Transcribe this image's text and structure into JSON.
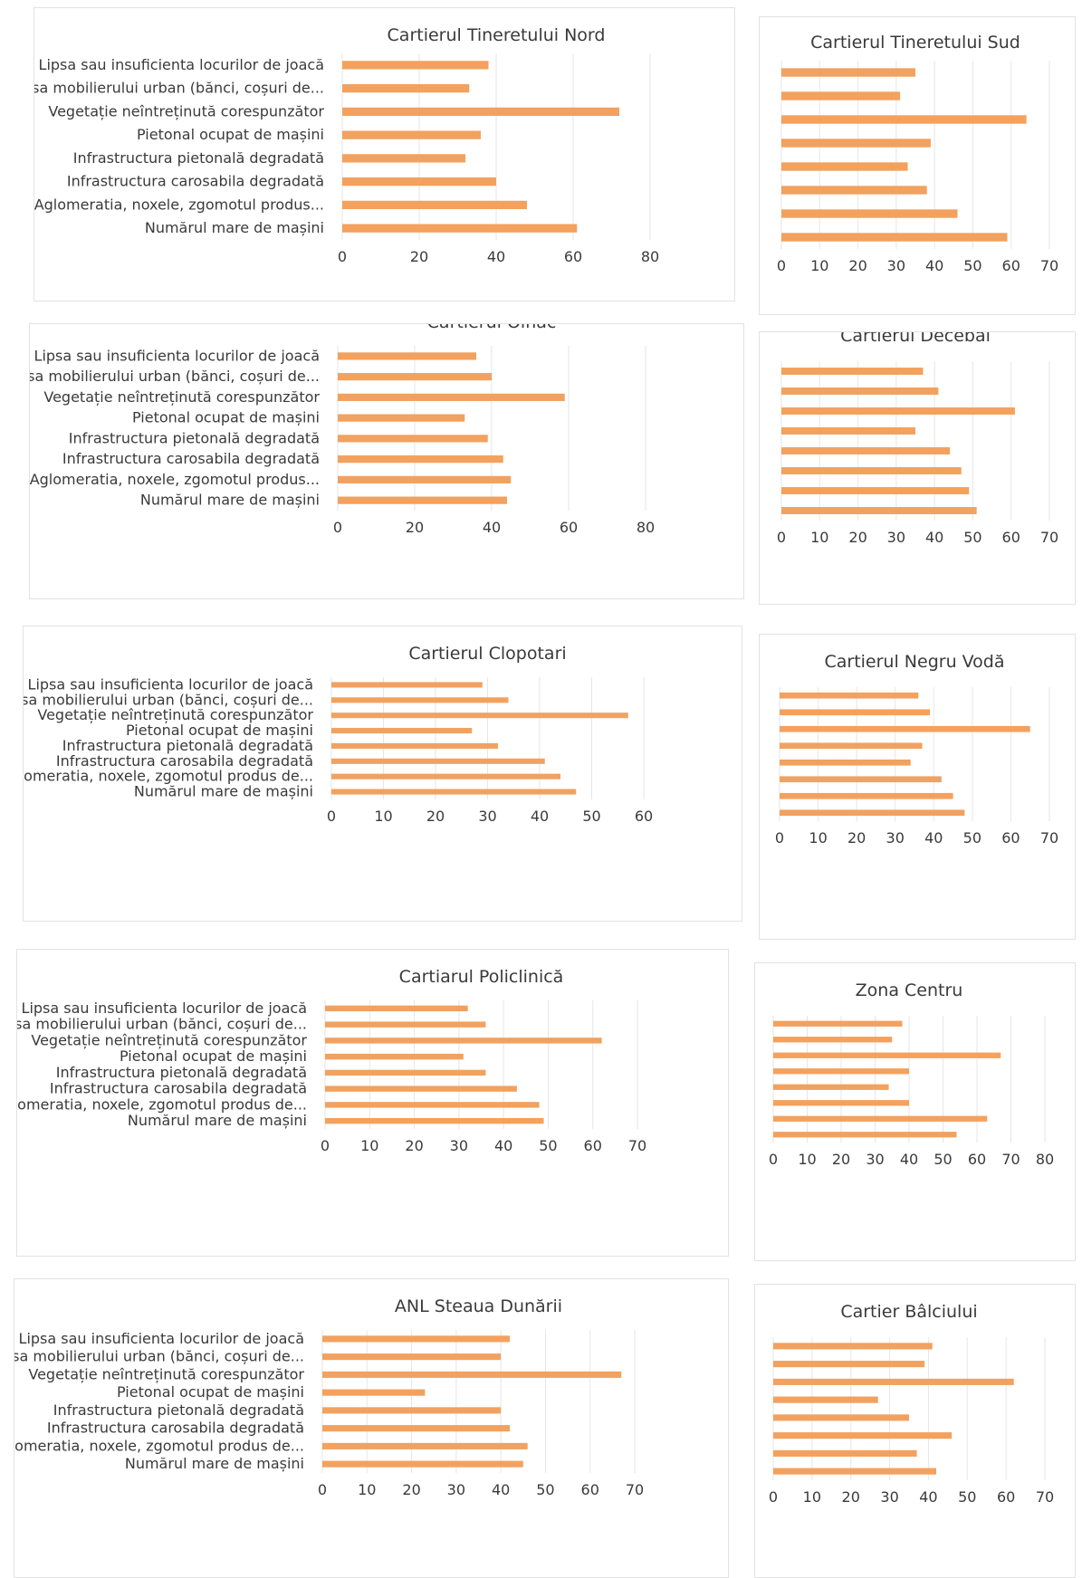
{
  "categories": [
    "Lipsa sau insuficienta locurilor de joacă",
    "Lipsa mobilierului urban (bănci, coșuri de...",
    "Vegetație neîntreținută corespunzător",
    "Pietonal ocupat de mașini",
    "Infrastructura pietonală degradată",
    "Infrastructura carosabila degradată",
    "Aglomeratia, noxele, zgomotul produs de...",
    "Numărul mare de mașini"
  ],
  "categories_variant": {
    "aglomeratia_short": "Aglomeratia, noxele, zgomotul produs..."
  },
  "style": {
    "bar_color": "#f3a15e",
    "grid_color": "#e6e6e6",
    "text_color": "#3a3a3a"
  },
  "chart_data": [
    {
      "type": "bar",
      "orientation": "horizontal",
      "title": "Cartierul Tineretului Nord",
      "show_categories": true,
      "short_aglomeratia": true,
      "values": [
        38,
        33,
        72,
        36,
        32,
        40,
        48,
        61
      ],
      "xlim": [
        0,
        80
      ],
      "xticks": [
        0,
        20,
        40,
        60,
        80
      ]
    },
    {
      "type": "bar",
      "orientation": "horizontal",
      "title": "Cartierul Tineretului Sud",
      "show_categories": false,
      "values": [
        35,
        31,
        64,
        39,
        33,
        38,
        46,
        59
      ],
      "xlim": [
        0,
        70
      ],
      "xticks": [
        0,
        10,
        20,
        30,
        40,
        50,
        60,
        70
      ]
    },
    {
      "type": "bar",
      "orientation": "horizontal",
      "title": "Cartierul Oinac",
      "show_categories": true,
      "short_aglomeratia": true,
      "values": [
        36,
        40,
        59,
        33,
        39,
        43,
        45,
        44
      ],
      "xlim": [
        0,
        80
      ],
      "xticks": [
        0,
        20,
        40,
        60,
        80
      ]
    },
    {
      "type": "bar",
      "orientation": "horizontal",
      "title": "Cartierul Decebal",
      "show_categories": false,
      "values": [
        37,
        41,
        61,
        35,
        44,
        47,
        49,
        51
      ],
      "xlim": [
        0,
        70
      ],
      "xticks": [
        0,
        10,
        20,
        30,
        40,
        50,
        60,
        70
      ]
    },
    {
      "type": "bar",
      "orientation": "horizontal",
      "title": "Cartierul Clopotari",
      "show_categories": true,
      "short_aglomeratia": false,
      "values": [
        29,
        34,
        57,
        27,
        32,
        41,
        44,
        47
      ],
      "xlim": [
        0,
        60
      ],
      "xticks": [
        0,
        10,
        20,
        30,
        40,
        50,
        60
      ]
    },
    {
      "type": "bar",
      "orientation": "horizontal",
      "title": "Cartierul Negru Vodă",
      "show_categories": false,
      "values": [
        36,
        39,
        65,
        37,
        34,
        42,
        45,
        48
      ],
      "xlim": [
        0,
        70
      ],
      "xticks": [
        0,
        10,
        20,
        30,
        40,
        50,
        60,
        70
      ]
    },
    {
      "type": "bar",
      "orientation": "horizontal",
      "title": "Cartiarul Policlinică",
      "show_categories": true,
      "short_aglomeratia": false,
      "values": [
        32,
        36,
        62,
        31,
        36,
        43,
        48,
        49
      ],
      "xlim": [
        0,
        70
      ],
      "xticks": [
        0,
        10,
        20,
        30,
        40,
        50,
        60,
        70
      ]
    },
    {
      "type": "bar",
      "orientation": "horizontal",
      "title": "Zona Centru",
      "show_categories": false,
      "values": [
        38,
        35,
        67,
        40,
        34,
        40,
        63,
        54
      ],
      "xlim": [
        0,
        80
      ],
      "xticks": [
        0,
        10,
        20,
        30,
        40,
        50,
        60,
        70,
        80
      ]
    },
    {
      "type": "bar",
      "orientation": "horizontal",
      "title": "ANL Steaua Dunării",
      "show_categories": true,
      "short_aglomeratia": false,
      "values": [
        42,
        40,
        67,
        23,
        40,
        42,
        46,
        45
      ],
      "xlim": [
        0,
        70
      ],
      "xticks": [
        0,
        10,
        20,
        30,
        40,
        50,
        60,
        70
      ]
    },
    {
      "type": "bar",
      "orientation": "horizontal",
      "title": "Cartier Bâlciului",
      "show_categories": false,
      "values": [
        41,
        39,
        62,
        27,
        35,
        46,
        37,
        42
      ],
      "xlim": [
        0,
        70
      ],
      "xticks": [
        0,
        10,
        20,
        30,
        40,
        50,
        60,
        70
      ]
    }
  ]
}
